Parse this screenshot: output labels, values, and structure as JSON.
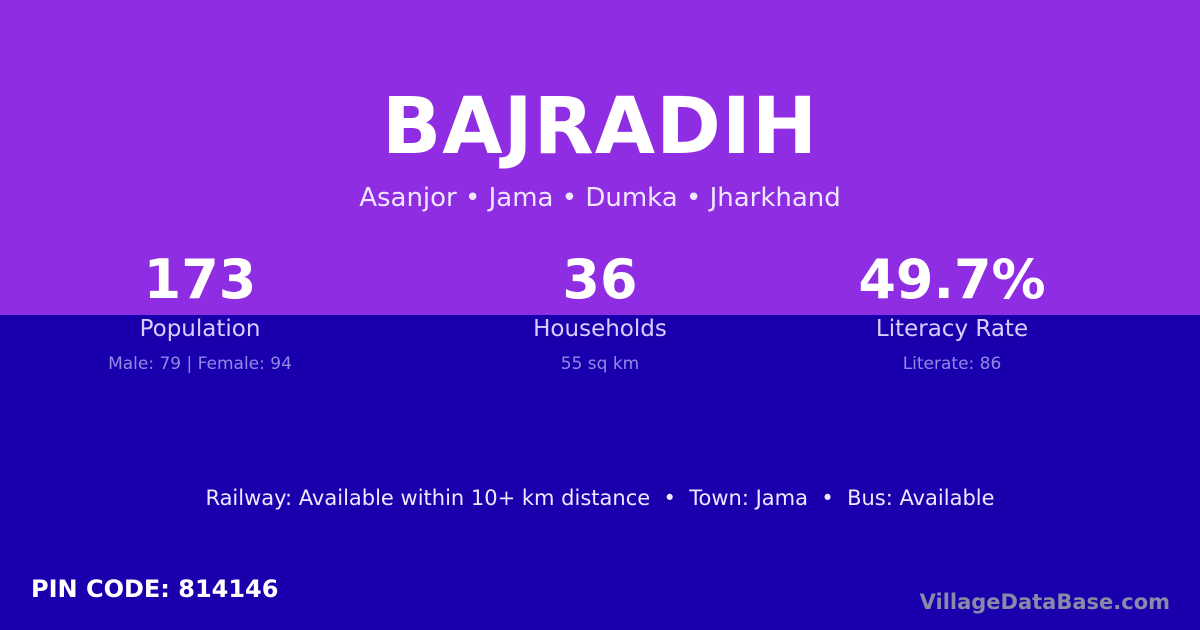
{
  "village": "BAJRADIH",
  "location": "Asanjor • Jama • Dumka • Jharkhand",
  "stats": [
    {
      "value": "173",
      "label": "Population",
      "detail": "Male: 79 | Female: 94"
    },
    {
      "value": "36",
      "label": "Households",
      "detail": "55 sq km"
    },
    {
      "value": "49.7%",
      "label": "Literacy Rate",
      "detail": "Literate: 86"
    }
  ],
  "amenities": "Railway: Available within 10+ km distance  •  Town: Jama  •  Bus: Available",
  "pin_code": "PIN CODE: 814146",
  "brand": "VillageDataBase.com",
  "colors": {
    "top_bg": "#8e2de2",
    "bottom_bg": "#1a00ad"
  }
}
